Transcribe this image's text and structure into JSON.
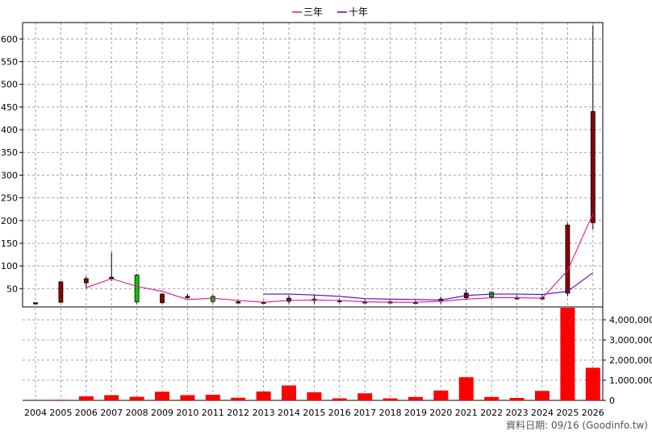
{
  "chart_data": {
    "type": "candlestick+line+bar",
    "legend": [
      {
        "label": "三年",
        "color": "#e0148c"
      },
      {
        "label": "十年",
        "color": "#5a00c8"
      }
    ],
    "x_labels": [
      "2004",
      "2005",
      "2006",
      "2007",
      "2008",
      "2009",
      "2010",
      "2011",
      "2012",
      "2013",
      "2014",
      "2015",
      "2016",
      "2017",
      "2018",
      "2019",
      "2020",
      "2021",
      "2022",
      "2023",
      "2024",
      "2025",
      "2026"
    ],
    "price_axis": {
      "ticks": [
        50,
        100,
        150,
        200,
        250,
        300,
        350,
        400,
        450,
        500,
        550,
        600
      ],
      "tick_labels": [
        "50",
        "100",
        "150",
        "200",
        "250",
        "300",
        "350",
        "400",
        "450",
        "500",
        "550",
        "600"
      ]
    },
    "volume_axis": {
      "ticks": [
        0,
        1000000,
        2000000,
        3000000,
        4000000
      ],
      "tick_labels": [
        "0",
        "1,000,000",
        "2,000,000",
        "3,000,000",
        "4,000,000"
      ]
    },
    "candles": [
      {
        "year": "2004",
        "open": 19,
        "high": 20,
        "low": 18,
        "close": 19
      },
      {
        "year": "2005",
        "open": 65,
        "high": 66,
        "low": 19,
        "close": 20
      },
      {
        "year": "2006",
        "open": 72,
        "high": 77,
        "low": 51,
        "close": 63
      },
      {
        "year": "2007",
        "open": 75,
        "high": 130,
        "low": 67,
        "close": 72
      },
      {
        "year": "2008",
        "open": 21,
        "high": 82,
        "low": 17,
        "close": 80
      },
      {
        "year": "2009",
        "open": 38,
        "high": 40,
        "low": 17,
        "close": 19
      },
      {
        "year": "2010",
        "open": 33,
        "high": 38,
        "low": 28,
        "close": 33
      },
      {
        "year": "2011",
        "open": 22,
        "high": 36,
        "low": 18,
        "close": 33
      },
      {
        "year": "2012",
        "open": 21,
        "high": 25,
        "low": 18,
        "close": 21
      },
      {
        "year": "2013",
        "open": 20,
        "high": 23,
        "low": 18,
        "close": 20
      },
      {
        "year": "2014",
        "open": 29,
        "high": 35,
        "low": 17,
        "close": 22
      },
      {
        "year": "2015",
        "open": 27,
        "high": 36,
        "low": 17,
        "close": 24
      },
      {
        "year": "2016",
        "open": 24,
        "high": 28,
        "low": 18,
        "close": 24
      },
      {
        "year": "2017",
        "open": 21,
        "high": 26,
        "low": 18,
        "close": 21
      },
      {
        "year": "2018",
        "open": 21,
        "high": 24,
        "low": 18,
        "close": 20
      },
      {
        "year": "2019",
        "open": 20,
        "high": 24,
        "low": 18,
        "close": 20
      },
      {
        "year": "2020",
        "open": 27,
        "high": 32,
        "low": 17,
        "close": 22
      },
      {
        "year": "2021",
        "open": 40,
        "high": 48,
        "low": 25,
        "close": 30
      },
      {
        "year": "2022",
        "open": 32,
        "high": 43,
        "low": 28,
        "close": 42
      },
      {
        "year": "2023",
        "open": 30,
        "high": 35,
        "low": 27,
        "close": 30
      },
      {
        "year": "2024",
        "open": 30,
        "high": 38,
        "low": 25,
        "close": 29
      },
      {
        "year": "2025",
        "open": 190,
        "high": 195,
        "low": 33,
        "close": 40
      },
      {
        "year": "2026",
        "open": 440,
        "high": 630,
        "low": 180,
        "close": 195
      }
    ],
    "ma3": {
      "start_index": 2,
      "values": [
        52,
        72,
        55,
        44,
        26,
        29,
        24,
        20,
        24,
        25,
        24,
        21,
        20,
        20,
        22,
        27,
        30,
        30,
        29,
        90,
        215
      ]
    },
    "ma10": {
      "start_index": 9,
      "values": [
        38,
        38,
        36,
        33,
        28,
        27,
        26,
        25,
        35,
        38,
        38,
        37,
        44,
        85
      ]
    },
    "volume": [
      0,
      30000,
      200000,
      260000,
      180000,
      430000,
      260000,
      280000,
      130000,
      440000,
      740000,
      400000,
      100000,
      350000,
      100000,
      170000,
      490000,
      1150000,
      170000,
      120000,
      470000,
      4600000,
      1620000
    ]
  },
  "footer": "資料日期: 09/16  (Goodinfo.tw)"
}
